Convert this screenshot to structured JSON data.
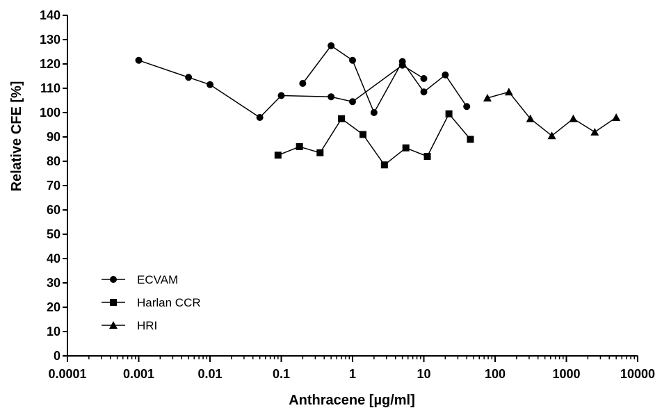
{
  "chart_data": {
    "type": "line",
    "title": "",
    "xlabel": "Anthracene [µg/ml]",
    "ylabel": "Relative CFE [%]",
    "xscale": "log",
    "xlim": [
      0.0001,
      10000
    ],
    "ylim": [
      0,
      140
    ],
    "xticks": [
      {
        "value": 0.0001,
        "label": "0.0001"
      },
      {
        "value": 0.001,
        "label": "0.001"
      },
      {
        "value": 0.01,
        "label": "0.01"
      },
      {
        "value": 0.1,
        "label": "0.1"
      },
      {
        "value": 1,
        "label": "1"
      },
      {
        "value": 10,
        "label": "10"
      },
      {
        "value": 100,
        "label": "100"
      },
      {
        "value": 1000,
        "label": "1000"
      },
      {
        "value": 10000,
        "label": "10000"
      }
    ],
    "yticks": [
      0,
      10,
      20,
      30,
      40,
      50,
      60,
      70,
      80,
      90,
      100,
      110,
      120,
      130,
      140
    ],
    "grid": false,
    "legend_position": "bottom-left",
    "series": [
      {
        "name": "ECVAM",
        "marker": "circle",
        "lines": [
          {
            "x": [
              0.001,
              0.005,
              0.01,
              0.05,
              0.1,
              0.5,
              1,
              5,
              10
            ],
            "y": [
              121.5,
              114.5,
              111.5,
              98,
              107,
              106.5,
              104.5,
              119.5,
              114
            ]
          },
          {
            "x": [
              0.2,
              0.5,
              1,
              2,
              5,
              10,
              20,
              40
            ],
            "y": [
              112,
              127.5,
              121.5,
              100,
              121,
              108.5,
              115.5,
              102.5
            ]
          }
        ]
      },
      {
        "name": "Harlan CCR",
        "marker": "square",
        "lines": [
          {
            "x": [
              0.09,
              0.18,
              0.35,
              0.7,
              1.4,
              2.8,
              5.6,
              11.2,
              22.5,
              45
            ],
            "y": [
              82.5,
              86,
              83.5,
              97.5,
              91,
              78.5,
              85.5,
              82,
              99.5,
              89
            ]
          }
        ]
      },
      {
        "name": "HRI",
        "marker": "triangle",
        "lines": [
          {
            "x": [
              78,
              156,
              312,
              625,
              1250,
              2500,
              5000
            ],
            "y": [
              106,
              108.5,
              97.5,
              90.5,
              97.5,
              92,
              98
            ]
          }
        ]
      }
    ]
  }
}
